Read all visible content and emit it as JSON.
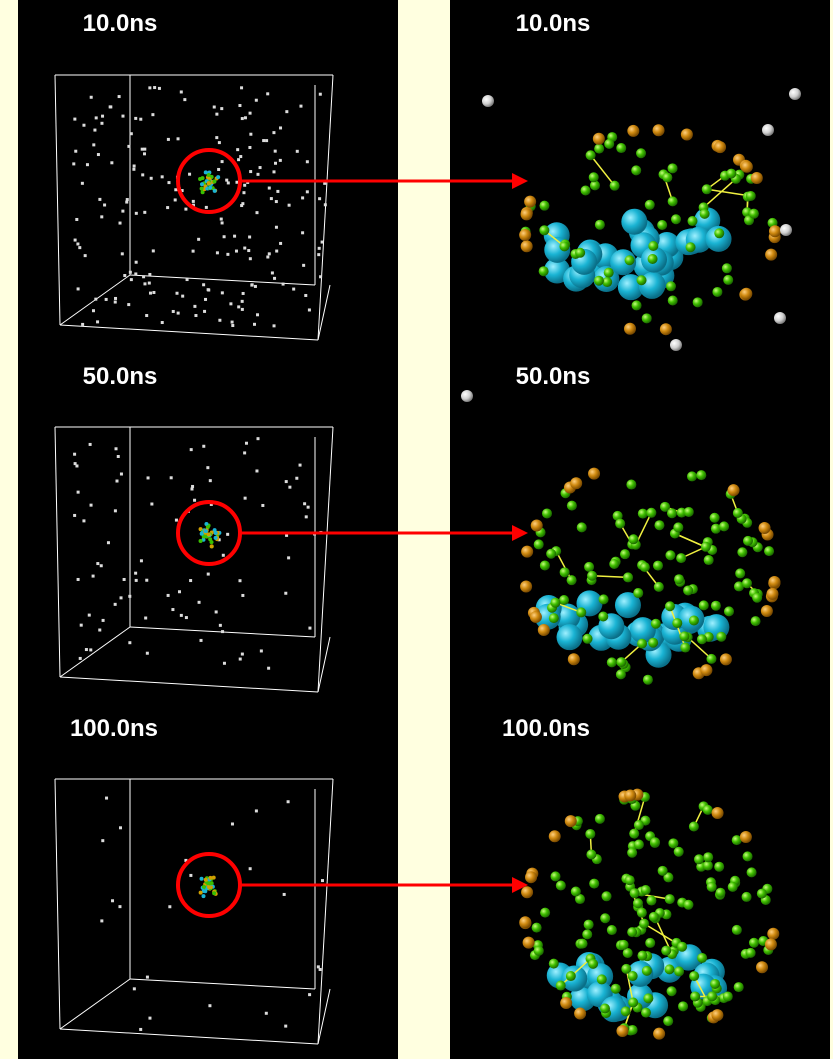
{
  "rows": [
    {
      "left_label": "10.0ns",
      "right_label": "10.0ns"
    },
    {
      "left_label": "50.0ns",
      "right_label": "50.0ns"
    },
    {
      "left_label": "100.0ns",
      "right_label": "100.0ns"
    }
  ]
}
